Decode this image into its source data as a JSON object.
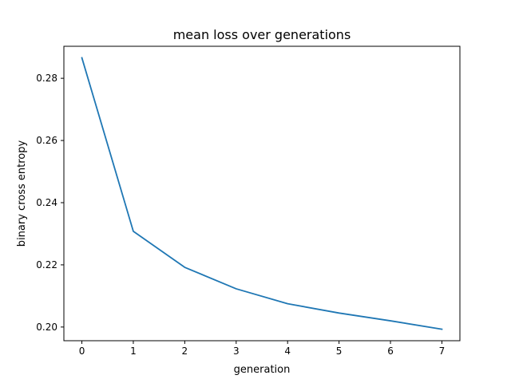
{
  "chart_data": {
    "type": "line",
    "title": "mean loss over generations",
    "xlabel": "generation",
    "ylabel": "binary cross entropy",
    "x": [
      0,
      1,
      2,
      3,
      4,
      5,
      6,
      7
    ],
    "series": [
      {
        "values": [
          0.2866,
          0.2308,
          0.2192,
          0.2123,
          0.2075,
          0.2045,
          0.202,
          0.1993
        ],
        "color": "#1f77b4"
      }
    ],
    "xlim": [
      -0.35,
      7.35
    ],
    "ylim": [
      0.1956,
      0.2903
    ],
    "xticks": [
      "0",
      "1",
      "2",
      "3",
      "4",
      "5",
      "6",
      "7"
    ],
    "yticks": [
      "0.20",
      "0.22",
      "0.24",
      "0.26",
      "0.28"
    ],
    "grid": false
  }
}
